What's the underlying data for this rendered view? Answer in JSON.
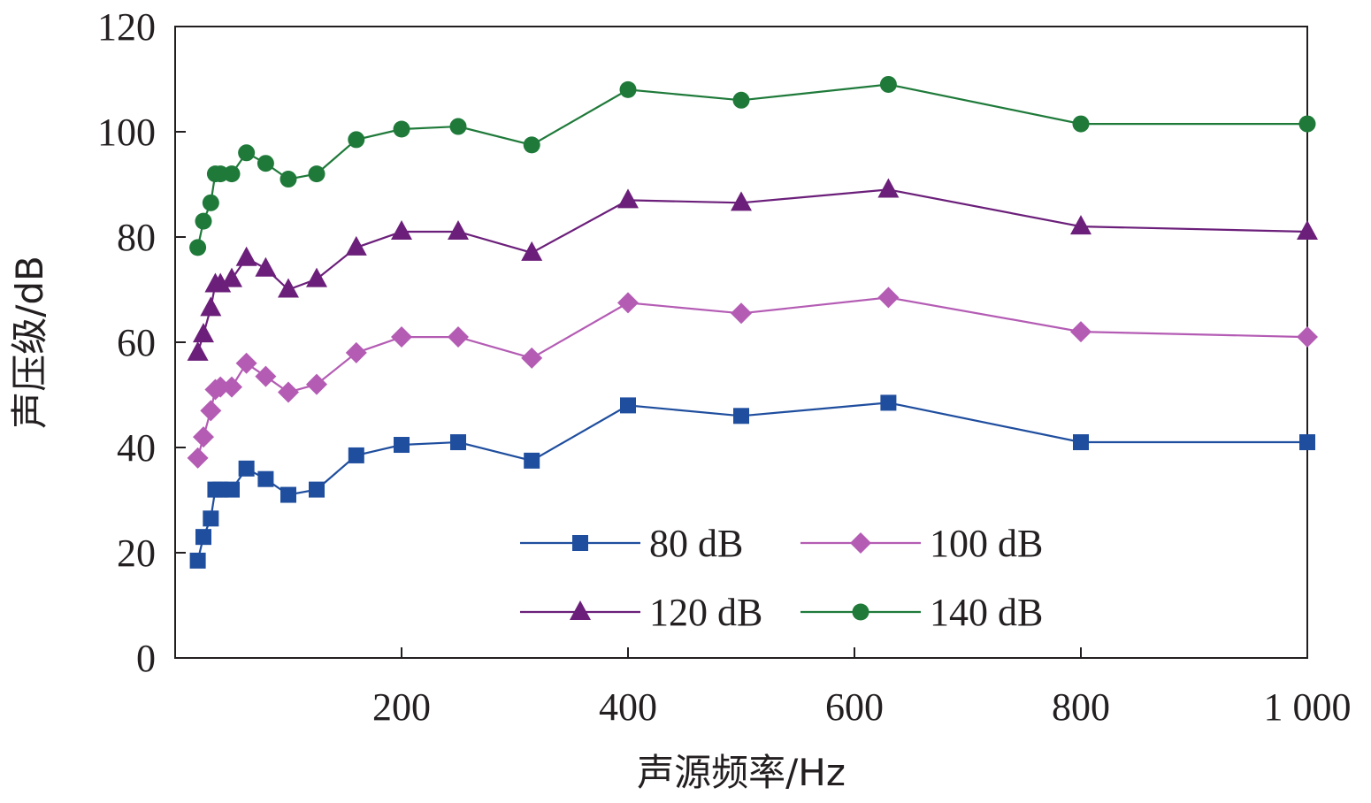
{
  "chart_data": {
    "type": "line",
    "xlabel": "声源频率/Hz",
    "ylabel": "声压级/dB",
    "xlim": [
      0,
      1000
    ],
    "ylim": [
      0,
      120
    ],
    "xticks": [
      200,
      400,
      600,
      800,
      1000
    ],
    "xtick_labels": [
      "200",
      "400",
      "600",
      "800",
      "1 000"
    ],
    "yticks": [
      0,
      20,
      40,
      60,
      80,
      100,
      120
    ],
    "ytick_labels": [
      "0",
      "20",
      "40",
      "60",
      "80",
      "100",
      "120"
    ],
    "grid": false,
    "legend_placement": "bottom-center",
    "x": [
      20,
      25,
      31.5,
      35.5,
      40,
      50,
      63,
      80,
      100,
      125,
      160,
      200,
      250,
      315,
      400,
      500,
      630,
      800,
      1000
    ],
    "series": [
      {
        "name": "80 dB",
        "marker": "square",
        "color": "#1f4e9e",
        "values": [
          18.5,
          23.0,
          26.5,
          32.0,
          32.0,
          32.0,
          36.0,
          34.0,
          31.0,
          32.0,
          38.5,
          40.5,
          41.0,
          37.5,
          48.0,
          46.0,
          48.5,
          41.0,
          41.0
        ]
      },
      {
        "name": "100 dB",
        "marker": "diamond",
        "color": "#b45cb4",
        "values": [
          38.0,
          42.0,
          47.0,
          51.0,
          51.5,
          51.5,
          56.0,
          53.5,
          50.5,
          52.0,
          58.0,
          61.0,
          61.0,
          57.0,
          67.5,
          65.5,
          68.5,
          62.0,
          61.0
        ]
      },
      {
        "name": "120 dB",
        "marker": "triangle",
        "color": "#6b1f7a",
        "values": [
          58.0,
          61.5,
          66.5,
          71.0,
          71.0,
          72.0,
          76.0,
          74.0,
          70.0,
          72.0,
          78.0,
          81.0,
          81.0,
          77.0,
          87.0,
          86.5,
          89.0,
          82.0,
          81.0
        ]
      },
      {
        "name": "140 dB",
        "marker": "circle",
        "color": "#1f7a3a",
        "values": [
          78.0,
          83.0,
          86.5,
          92.0,
          92.0,
          92.0,
          96.0,
          94.0,
          91.0,
          92.0,
          98.5,
          100.5,
          101.0,
          97.5,
          108.0,
          106.0,
          109.0,
          101.5,
          101.5
        ]
      }
    ]
  }
}
